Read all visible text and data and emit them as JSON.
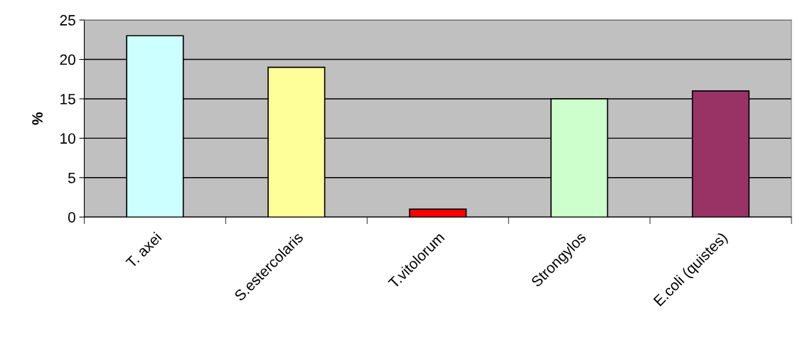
{
  "chart_data": {
    "type": "bar",
    "ylabel": "%",
    "categories": [
      "T. axei",
      "S.estercolaris",
      "T.vitolorum",
      "Strongylos",
      "E.coli (quistes)"
    ],
    "values": [
      23,
      19,
      1,
      15,
      16
    ],
    "colors": [
      "#ccffff",
      "#ffff99",
      "#ff0000",
      "#ccffcc",
      "#993366"
    ],
    "ylim": [
      0,
      25
    ],
    "yticks": [
      0,
      5,
      10,
      15,
      20,
      25
    ],
    "grid": "y",
    "legend": false
  }
}
